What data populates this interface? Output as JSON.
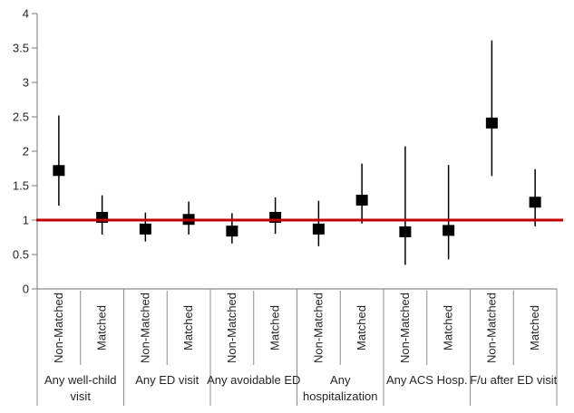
{
  "chart_data": {
    "type": "scatter",
    "subtype": "forest-plot-error-bars",
    "title": "",
    "xlabel": "",
    "ylabel": "",
    "ylim": [
      0,
      4
    ],
    "yticks": [
      0,
      0.5,
      1,
      1.5,
      2,
      2.5,
      3,
      3.5,
      4
    ],
    "grid": false,
    "legend": false,
    "reference_line": {
      "y": 1
    },
    "series_labels": [
      "Non-Matched",
      "Matched"
    ],
    "groups": [
      {
        "label": "Any well-child visit",
        "label_lines": [
          "Any well-child",
          "visit"
        ],
        "points": [
          {
            "series": "Non-Matched",
            "estimate": 1.72,
            "ci_low": 1.21,
            "ci_high": 2.52
          },
          {
            "series": "Matched",
            "estimate": 1.04,
            "ci_low": 0.79,
            "ci_high": 1.36
          }
        ]
      },
      {
        "label": "Any ED visit",
        "label_lines": [
          "Any ED visit"
        ],
        "points": [
          {
            "series": "Non-Matched",
            "estimate": 0.87,
            "ci_low": 0.69,
            "ci_high": 1.11
          },
          {
            "series": "Matched",
            "estimate": 1.01,
            "ci_low": 0.79,
            "ci_high": 1.27
          }
        ]
      },
      {
        "label": "Any avoidable ED",
        "label_lines": [
          "Any avoidable ED"
        ],
        "points": [
          {
            "series": "Non-Matched",
            "estimate": 0.84,
            "ci_low": 0.66,
            "ci_high": 1.1
          },
          {
            "series": "Matched",
            "estimate": 1.04,
            "ci_low": 0.8,
            "ci_high": 1.33
          }
        ]
      },
      {
        "label": "Any hospitalization",
        "label_lines": [
          "Any",
          "hospitalization"
        ],
        "points": [
          {
            "series": "Non-Matched",
            "estimate": 0.87,
            "ci_low": 0.62,
            "ci_high": 1.28
          },
          {
            "series": "Matched",
            "estimate": 1.29,
            "ci_low": 0.95,
            "ci_high": 1.82
          }
        ]
      },
      {
        "label": "Any ACS Hosp.",
        "label_lines": [
          "Any ACS Hosp."
        ],
        "points": [
          {
            "series": "Non-Matched",
            "estimate": 0.83,
            "ci_low": 0.35,
            "ci_high": 2.07
          },
          {
            "series": "Matched",
            "estimate": 0.85,
            "ci_low": 0.43,
            "ci_high": 1.8
          }
        ]
      },
      {
        "label": "F/u after ED visit",
        "label_lines": [
          "F/u after ED visit"
        ],
        "points": [
          {
            "series": "Non-Matched",
            "estimate": 2.41,
            "ci_low": 1.64,
            "ci_high": 3.61
          },
          {
            "series": "Matched",
            "estimate": 1.26,
            "ci_low": 0.91,
            "ci_high": 1.74
          }
        ]
      }
    ],
    "colors": {
      "marker": "#000000",
      "error_bar": "#000000",
      "reference_line": "#c00000",
      "axis": "#8c8c8c",
      "text": "#262626",
      "background": "#ffffff"
    }
  }
}
